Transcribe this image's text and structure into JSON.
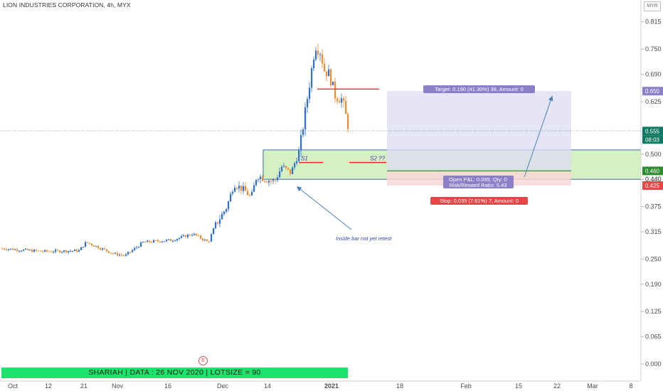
{
  "header": {
    "title": "LION INDUSTRIES CORPORATION, 4h, MYX",
    "currency": "MYR"
  },
  "banner": {
    "text": "SHARIAH   |   DATA : 26 NOV 2020   |   LOTSIZE = 90"
  },
  "event_marker": "E",
  "colors": {
    "up": "#2e6fd0",
    "down": "#ef8d2e",
    "line": "#e82020",
    "target_zone": "#dcdcf2",
    "stop_zone": "#f8d6d6",
    "box": "#d5f0c2",
    "annotation": "#3344aa",
    "arrow": "#4a7fb8"
  },
  "chart_data": {
    "type": "candlestick",
    "timeframe": "4h",
    "y_ticks": [
      "0.815",
      "0.750",
      "0.690",
      "0.625",
      "0.500",
      "0.440",
      "0.375",
      "0.315",
      "0.250",
      "0.190",
      "0.125",
      "0.065",
      "0.000"
    ],
    "x_ticks": [
      "Oct",
      "12",
      "21",
      "Nov",
      "16",
      "Dec",
      "14",
      "2021",
      "18",
      "Feb",
      "15",
      "22",
      "Mar",
      "8"
    ],
    "price_labels": {
      "target": "0.650",
      "last_price": "0.555",
      "countdown": "08:03",
      "entry": "0.460",
      "stop_level": "0.440",
      "stop": "0.425"
    },
    "ylim": [
      0.0,
      0.83
    ],
    "position": {
      "entry": 0.46,
      "target": 0.65,
      "stop": 0.425,
      "target_label": "Target: 0.190 (41.30%) 38, Amount: 0",
      "stop_label": "Stop: 0.035 (7.61%) 7, Amount: 0",
      "pnl_label": "Open P&L: 0.095, Qty: 0",
      "rr_label": "Risk/Reward Ratio: 5.43"
    },
    "support_resistance": [
      {
        "label": "S1",
        "price": 0.48
      },
      {
        "label": "S2 ??",
        "price": 0.48
      },
      {
        "label": "",
        "price": 0.655
      }
    ],
    "box_range": [
      0.44,
      0.51
    ],
    "annotation": "Inside bar not yet retest"
  }
}
